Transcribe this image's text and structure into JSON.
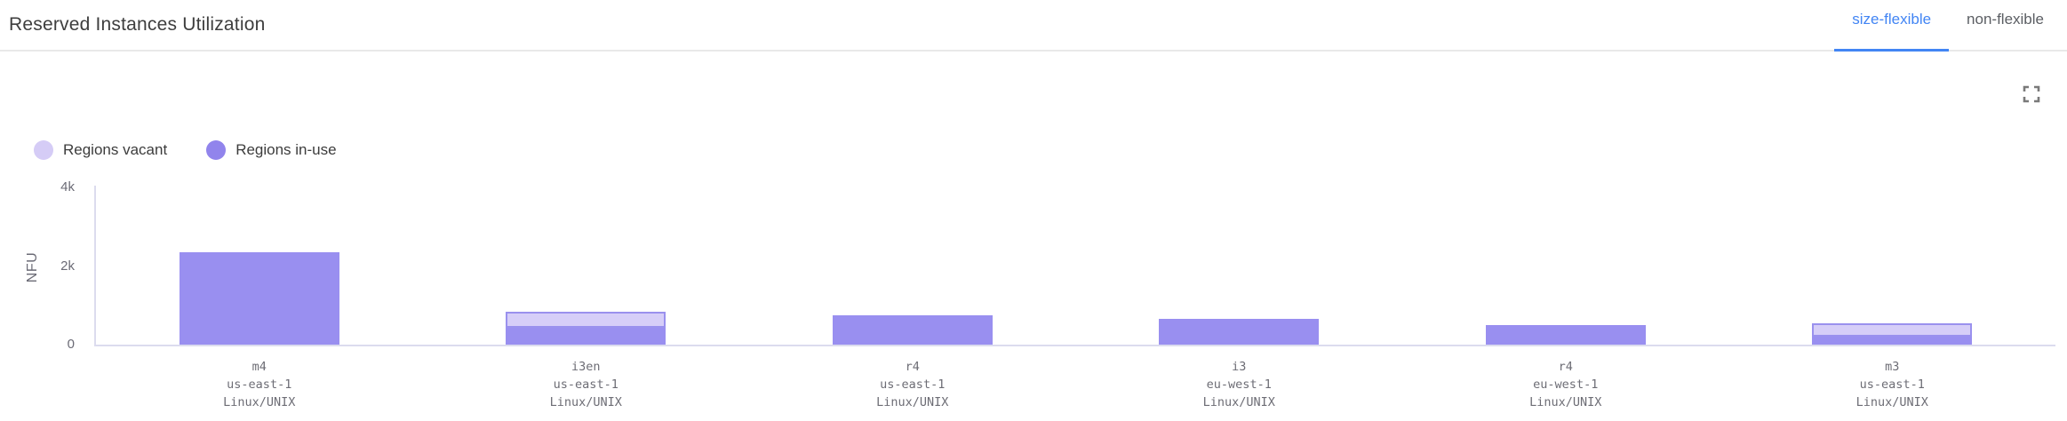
{
  "header": {
    "title": "Reserved Instances Utilization",
    "tabs": [
      {
        "label": "size-flexible",
        "active": true
      },
      {
        "label": "non-flexible",
        "active": false
      }
    ]
  },
  "icons": {
    "fullscreen": "fullscreen-expand-icon"
  },
  "colors": {
    "accent_blue": "#4285f4",
    "in_use": "#998ff0",
    "vacant_fill": "#d6cef8",
    "vacant_border": "#9a91ee",
    "legend_vacant": "#d5ccf6",
    "legend_in_use": "#9184ec",
    "axis": "#dcdcee"
  },
  "chart_data": {
    "type": "bar",
    "stacked": true,
    "title": "Reserved Instances Utilization",
    "xlabel": "",
    "ylabel": "NFU",
    "ylim": [
      0,
      4000
    ],
    "grid": false,
    "legend_position": "top-left",
    "yticks": [
      {
        "value": 0,
        "label": "0"
      },
      {
        "value": 2000,
        "label": "2k"
      },
      {
        "value": 4000,
        "label": "4k"
      }
    ],
    "legend": [
      {
        "name": "Regions vacant",
        "color": "#d5ccf6"
      },
      {
        "name": "Regions in-use",
        "color": "#9184ec"
      }
    ],
    "categories": [
      {
        "lines": [
          "m4",
          "us-east-1",
          "Linux/UNIX"
        ]
      },
      {
        "lines": [
          "i3en",
          "us-east-1",
          "Linux/UNIX"
        ]
      },
      {
        "lines": [
          "r4",
          "us-east-1",
          "Linux/UNIX"
        ]
      },
      {
        "lines": [
          "i3",
          "eu-west-1",
          "Linux/UNIX"
        ]
      },
      {
        "lines": [
          "r4",
          "eu-west-1",
          "Linux/UNIX"
        ]
      },
      {
        "lines": [
          "m3",
          "us-east-1",
          "Linux/UNIX"
        ]
      }
    ],
    "series": [
      {
        "name": "Regions in-use",
        "values": [
          2350,
          430,
          750,
          650,
          500,
          200
        ]
      },
      {
        "name": "Regions vacant",
        "values": [
          0,
          410,
          0,
          0,
          0,
          340
        ]
      }
    ]
  }
}
